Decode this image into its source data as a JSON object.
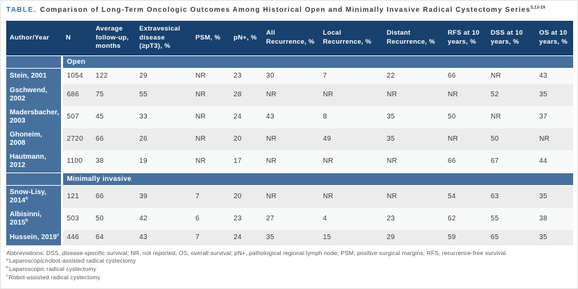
{
  "title": {
    "label": "TABLE.",
    "text": "Comparison of Long-Term Oncologic Outcomes Among Historical Open and Minimally Invasive Radical Cystectomy Series",
    "superscript": "5,13-19"
  },
  "colors": {
    "header_bg": "#17416e",
    "band_bg": "#46719e",
    "title_accent": "#3470ad",
    "row_light": "#f8f9f9",
    "row_dark": "#ececec",
    "body_text": "#3a3a3a",
    "footnote_text": "#595959"
  },
  "table": {
    "columns": [
      "Author/Year",
      "N",
      "Average follow-up, months",
      "Extravesical disease (≥pT3), %",
      "PSM, %",
      "pN+, %",
      "All Recurrence, %",
      "Local Recurrence, %",
      "Distant Recurrence, %",
      "RFS at 10 years, %",
      "DSS at 10 years, %",
      "OS at 10 years, %"
    ],
    "sections": [
      {
        "label": "Open",
        "rows": [
          {
            "author": "Stein, 2001",
            "sup": "",
            "values": [
              "1054",
              "122",
              "29",
              "NR",
              "23",
              "30",
              "7",
              "22",
              "66",
              "NR",
              "43"
            ]
          },
          {
            "author": "Gschwend, 2002",
            "sup": "",
            "values": [
              "686",
              "75",
              "55",
              "NR",
              "28",
              "NR",
              "NR",
              "NR",
              "NR",
              "52",
              "35"
            ]
          },
          {
            "author": "Madersbacher, 2003",
            "sup": "",
            "values": [
              "507",
              "45",
              "33",
              "NR",
              "24",
              "43",
              "8",
              "35",
              "50",
              "NR",
              "37"
            ]
          },
          {
            "author": "Ghoneim, 2008",
            "sup": "",
            "values": [
              "2720",
              "66",
              "26",
              "NR",
              "20",
              "NR",
              "49",
              "35",
              "NR",
              "50",
              "NR"
            ]
          },
          {
            "author": "Hautmann, 2012",
            "sup": "",
            "values": [
              "1100",
              "38",
              "19",
              "NR",
              "17",
              "NR",
              "NR",
              "NR",
              "66",
              "67",
              "44"
            ]
          }
        ]
      },
      {
        "label": "Minimally invasive",
        "rows": [
          {
            "author": "Snow-Lisy, 2014",
            "sup": "a",
            "values": [
              "121",
              "66",
              "39",
              "7",
              "20",
              "NR",
              "NR",
              "NR",
              "54",
              "63",
              "35"
            ]
          },
          {
            "author": "Albisinni, 2015",
            "sup": "b",
            "values": [
              "503",
              "50",
              "42",
              "6",
              "23",
              "27",
              "4",
              "23",
              "62",
              "55",
              "38"
            ]
          },
          {
            "author": "Hussein, 2019",
            "sup": "c",
            "values": [
              "446",
              "64",
              "43",
              "7",
              "24",
              "35",
              "15",
              "29",
              "59",
              "65",
              "35"
            ]
          }
        ]
      }
    ]
  },
  "footnotes": {
    "abbreviations": "Abbreviations: DSS, disease-specific survival; NR, not reported; OS, overall survival; pN+, pathological regional lymph node; PSM, positive surgical margins; RFS, recurrence-free survival.",
    "items": [
      {
        "sup": "a",
        "text": "Laparoscopic/robot-assisted radical cystectomy"
      },
      {
        "sup": "b",
        "text": "Laparoscopic radical cystectomy"
      },
      {
        "sup": "c",
        "text": "Robot-assisted radical cystectomy"
      }
    ]
  }
}
